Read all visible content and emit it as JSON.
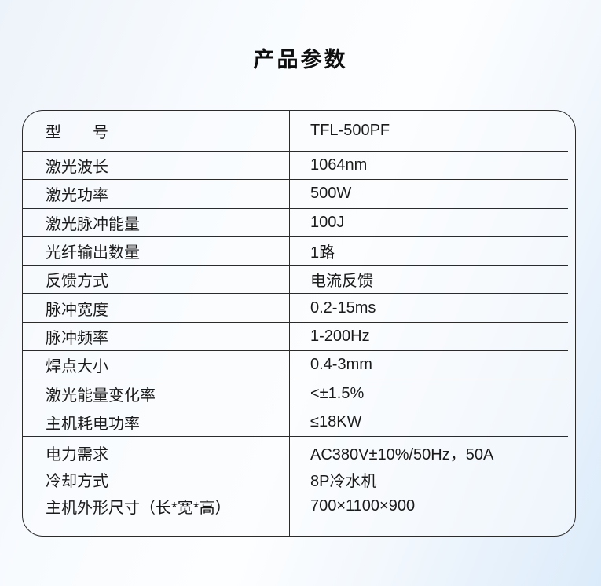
{
  "page": {
    "title": "产品参数"
  },
  "table": {
    "columns": [
      "parameter",
      "value"
    ],
    "rows": [
      {
        "type": "header",
        "label": "型　　号",
        "value": "TFL-500PF"
      },
      {
        "type": "normal",
        "label": "激光波长",
        "value": "1064nm"
      },
      {
        "type": "normal",
        "label": "激光功率",
        "value": "500W"
      },
      {
        "type": "normal",
        "label": "激光脉冲能量",
        "value": "100J"
      },
      {
        "type": "normal",
        "label": "光纤输出数量",
        "value": "1路"
      },
      {
        "type": "normal",
        "label": "反馈方式",
        "value": "电流反馈"
      },
      {
        "type": "normal",
        "label": "脉冲宽度",
        "value": "0.2-15ms"
      },
      {
        "type": "normal",
        "label": "脉冲频率",
        "value": "1-200Hz"
      },
      {
        "type": "normal",
        "label": "焊点大小",
        "value": "0.4-3mm"
      },
      {
        "type": "normal",
        "label": "激光能量变化率",
        "value": "<±1.5%"
      },
      {
        "type": "normal",
        "label": "主机耗电功率",
        "value": "≤18KW"
      },
      {
        "type": "group",
        "lines": [
          {
            "label": "电力需求",
            "value": "AC380V±10%/50Hz，50A"
          },
          {
            "label": "冷却方式",
            "value": "8P冷水机"
          },
          {
            "label": "主机外形尺寸（长*宽*高）",
            "value": "700×1100×900"
          }
        ]
      }
    ]
  },
  "colors": {
    "border": "#2b2b2b",
    "text": "#1a1a1a",
    "background_top_left": "#edf3fa",
    "background_center": "#fdfeff",
    "background_bottom_right": "#dcebfa"
  }
}
